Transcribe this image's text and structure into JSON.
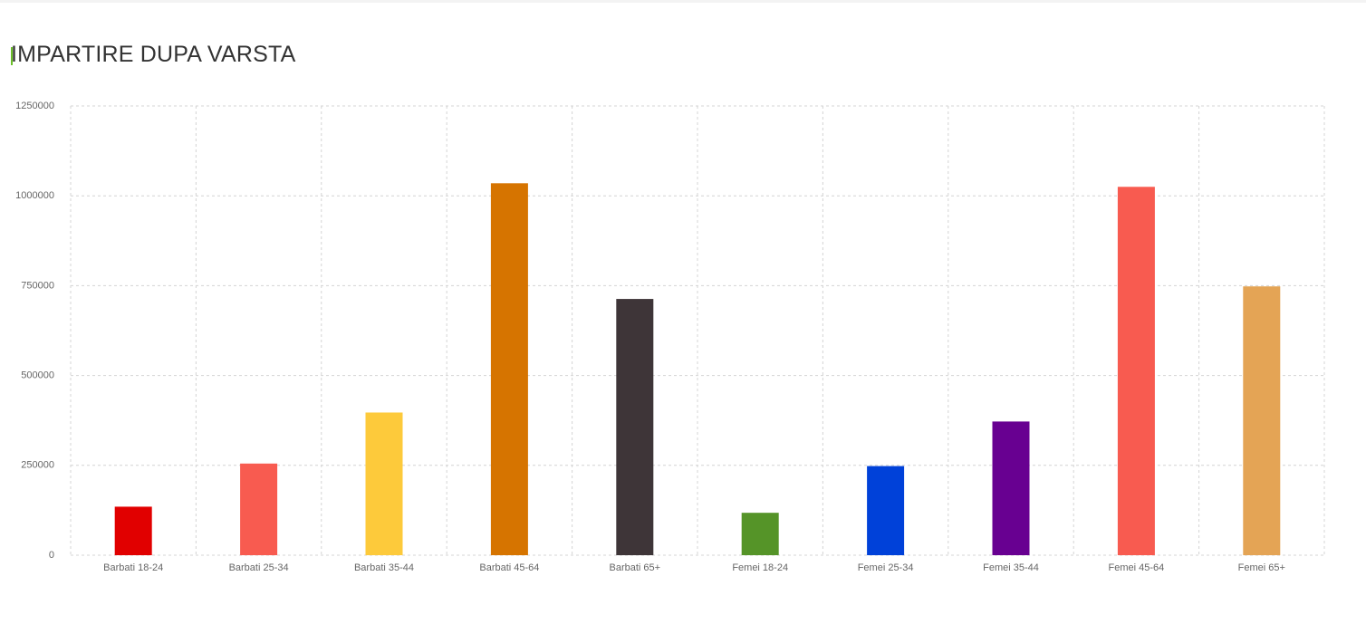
{
  "chart_data": {
    "type": "bar",
    "title": "IMPARTIRE DUPA VARSTA",
    "categories": [
      "Barbati 18-24",
      "Barbati 25-34",
      "Barbati 35-44",
      "Barbati 45-64",
      "Barbati 65+",
      "Femei 18-24",
      "Femei 25-34",
      "Femei 35-44",
      "Femei 45-64",
      "Femei 65+"
    ],
    "values": [
      135000,
      255000,
      397000,
      1035000,
      713000,
      118000,
      248000,
      372000,
      1025000,
      748000
    ],
    "colors": [
      "#e10000",
      "#f85b50",
      "#fdca3b",
      "#d67400",
      "#3e3538",
      "#559428",
      "#0041d9",
      "#680091",
      "#f85b50",
      "#e4a455"
    ],
    "ylim": [
      0,
      1250000
    ],
    "yticks": [
      "0",
      "250000",
      "500000",
      "750000",
      "1000000",
      "1250000"
    ],
    "xlabel": "",
    "ylabel": "",
    "grid": true,
    "legend": "none"
  }
}
